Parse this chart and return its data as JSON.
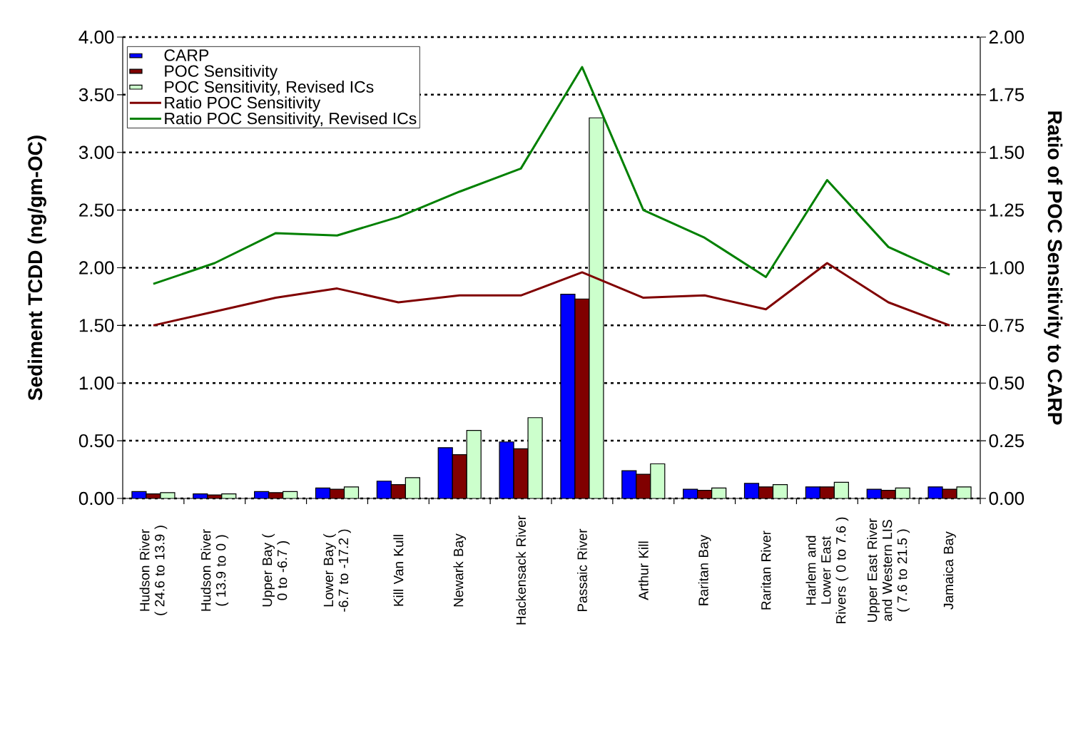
{
  "chart_data": {
    "type": "bar",
    "ylabel": "Sediment TCDD (ng/gm-OC)",
    "y2label": "Ratio of POC Sensitivity to CARP",
    "categories": [
      "Hudson River ( 24.6 to 13.9 )",
      "Hudson River ( 13.9 to 0 )",
      "Upper Bay ( 0 to -6.7 )",
      "Lower Bay ( -6.7 to -17.2 )",
      "Kill Van Kull",
      "Newark Bay",
      "Hackensack River",
      "Passaic River",
      "Arthur Kill",
      "Raritan Bay",
      "Raritan River",
      "Harlem and Lower East Rivers ( 0 to 7.6 )",
      "Upper East River and Western LIS ( 7.6 to 21.5 )",
      "Jamaica Bay"
    ],
    "series": [
      {
        "name": "CARP",
        "color": "#0000ff",
        "values": [
          0.06,
          0.04,
          0.06,
          0.09,
          0.15,
          0.44,
          0.49,
          1.77,
          0.24,
          0.08,
          0.13,
          0.1,
          0.08,
          0.1
        ]
      },
      {
        "name": "POC Sensitivity",
        "color": "#800000",
        "values": [
          0.04,
          0.03,
          0.05,
          0.08,
          0.12,
          0.38,
          0.43,
          1.73,
          0.21,
          0.07,
          0.1,
          0.1,
          0.07,
          0.08
        ]
      },
      {
        "name": "POC Sensitivity, Revised ICs",
        "color": "#ccffcc",
        "values": [
          0.05,
          0.04,
          0.06,
          0.1,
          0.18,
          0.59,
          0.7,
          3.3,
          0.3,
          0.09,
          0.12,
          0.14,
          0.09,
          0.1
        ]
      },
      {
        "name": "Ratio POC Sensitivity",
        "type": "line",
        "axis": "y2",
        "color": "#800000",
        "values": [
          0.75,
          0.81,
          0.87,
          0.91,
          0.85,
          0.88,
          0.88,
          0.98,
          0.87,
          0.88,
          0.82,
          1.02,
          0.85,
          0.75
        ]
      },
      {
        "name": "Ratio POC Sensitivity, Revised ICs",
        "type": "line",
        "axis": "y2",
        "color": "#008000",
        "values": [
          0.93,
          1.02,
          1.15,
          1.14,
          1.22,
          1.33,
          1.43,
          1.87,
          1.25,
          1.13,
          0.96,
          1.38,
          1.09,
          0.97
        ]
      }
    ],
    "ylim": [
      0,
      4
    ],
    "yticks": [
      {
        "value": 0,
        "label": "0.00"
      },
      {
        "value": 0.5,
        "label": "0.50"
      },
      {
        "value": 1,
        "label": "1.00"
      },
      {
        "value": 1.5,
        "label": "1.50"
      },
      {
        "value": 2,
        "label": "2.00"
      },
      {
        "value": 2.5,
        "label": "2.50"
      },
      {
        "value": 3,
        "label": "3.00"
      },
      {
        "value": 3.5,
        "label": "3.50"
      },
      {
        "value": 4,
        "label": "4.00"
      }
    ],
    "y2lim": [
      0,
      2
    ],
    "y2ticks": [
      {
        "value": 0,
        "label": "0.00"
      },
      {
        "value": 0.25,
        "label": "0.25"
      },
      {
        "value": 0.5,
        "label": "0.50"
      },
      {
        "value": 0.75,
        "label": "0.75"
      },
      {
        "value": 1,
        "label": "1.00"
      },
      {
        "value": 1.25,
        "label": "1.25"
      },
      {
        "value": 1.5,
        "label": "1.50"
      },
      {
        "value": 1.75,
        "label": "1.75"
      },
      {
        "value": 2,
        "label": "2.00"
      }
    ],
    "grid": "y",
    "legend": "top left",
    "marker": "none",
    "line_style": "solid"
  }
}
